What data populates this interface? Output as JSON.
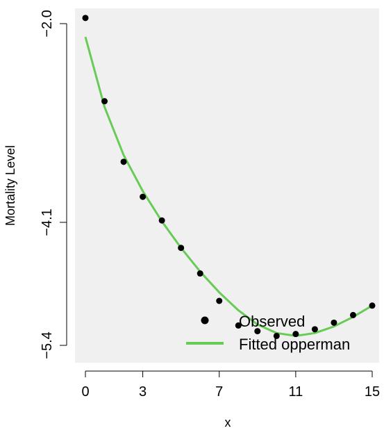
{
  "chart_data": {
    "type": "scatter",
    "title": "",
    "xlabel": "x",
    "ylabel": "Mortality Level",
    "xlim": [
      0,
      15
    ],
    "ylim": [
      -5.4,
      -2.0
    ],
    "xticks": [
      0,
      3,
      7,
      11,
      15
    ],
    "xtick_labels": [
      "0",
      "3",
      "7",
      "11",
      "15"
    ],
    "yticks": [
      -2.0,
      -4.1,
      -5.4
    ],
    "ytick_labels": [
      "−2.0",
      "−4.1",
      "−5.4"
    ],
    "grid": false,
    "legend_position": "bottom-right",
    "series": [
      {
        "name": "Observed",
        "kind": "points",
        "color": "#000000",
        "x": [
          0,
          1,
          2,
          3,
          4,
          5,
          6,
          7,
          8,
          9,
          10,
          11,
          12,
          13,
          14,
          15
        ],
        "y": [
          -1.94,
          -2.82,
          -3.46,
          -3.83,
          -4.08,
          -4.37,
          -4.64,
          -4.93,
          -5.19,
          -5.25,
          -5.3,
          -5.28,
          -5.23,
          -5.16,
          -5.08,
          -4.98
        ]
      },
      {
        "name": "Fitted opperman",
        "kind": "line",
        "color": "#66cc55",
        "x": [
          0,
          1,
          2,
          3,
          4,
          5,
          6,
          7,
          8,
          9,
          10,
          11,
          12,
          13,
          14,
          15
        ],
        "y": [
          -2.14,
          -2.88,
          -3.39,
          -3.77,
          -4.09,
          -4.37,
          -4.62,
          -4.84,
          -5.03,
          -5.18,
          -5.27,
          -5.3,
          -5.27,
          -5.2,
          -5.1,
          -4.98
        ]
      }
    ]
  }
}
